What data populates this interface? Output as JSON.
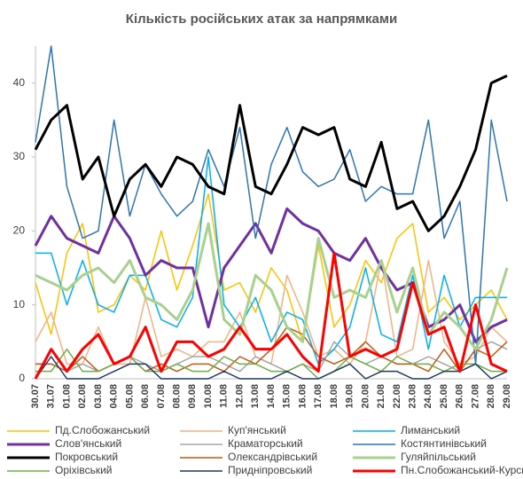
{
  "chart_data": {
    "type": "line",
    "title": "Кількість російських атак за напрямками",
    "categories": [
      "30.07",
      "31.07",
      "01.08",
      "02.08",
      "03.08",
      "04.08",
      "05.08",
      "06.08",
      "07.08",
      "08.08",
      "09.08",
      "10.08",
      "11.08",
      "12.08",
      "13.08",
      "14.08",
      "15.08",
      "16.08",
      "17.08",
      "18.08",
      "19.08",
      "20.08",
      "21.08",
      "22.08",
      "23.08",
      "24.08",
      "25.08",
      "26.08",
      "27.08",
      "28.08",
      "29.08"
    ],
    "ylim": [
      0,
      45
    ],
    "yticks": [
      0,
      10,
      20,
      30,
      40
    ],
    "legend": "bottom",
    "series": [
      {
        "name": "Пд.Слобожанський",
        "color": "#ffc000",
        "line_width": 1.5,
        "values": [
          13,
          6,
          17,
          21,
          9,
          10,
          14,
          12,
          20,
          12,
          18,
          25,
          12,
          13,
          9,
          15,
          12,
          5,
          18,
          7,
          10,
          16,
          13,
          19,
          21,
          9,
          11,
          8,
          10,
          12,
          8
        ]
      },
      {
        "name": "Куп'янський",
        "color": "#f4b183",
        "line_width": 1.5,
        "values": [
          5,
          9,
          2,
          2,
          7,
          2,
          2,
          11,
          3,
          4,
          3,
          5,
          5,
          9,
          3,
          2,
          14,
          9,
          3,
          4,
          2,
          5,
          16,
          3,
          4,
          16,
          5,
          2,
          3,
          7,
          5
        ]
      },
      {
        "name": "Лиманський",
        "color": "#00b0f0",
        "line_width": 1.5,
        "values": [
          17,
          17,
          10,
          16,
          10,
          9,
          14,
          14,
          8,
          7,
          11,
          30,
          10,
          7,
          11,
          5,
          9,
          8,
          2,
          4,
          7,
          15,
          6,
          5,
          14,
          4,
          14,
          7,
          11,
          11,
          11
        ]
      },
      {
        "name": "Слов'янський",
        "color": "#7030a0",
        "line_width": 3,
        "values": [
          18,
          22,
          19,
          18,
          17,
          22,
          19,
          14,
          16,
          15,
          15,
          7,
          15,
          18,
          21,
          17,
          23,
          21,
          20,
          17,
          16,
          19,
          15,
          12,
          13,
          7,
          8,
          10,
          5,
          7,
          8
        ]
      },
      {
        "name": "Краматорський",
        "color": "#a5a5a5",
        "line_width": 1.5,
        "values": [
          2,
          2,
          1,
          2,
          1,
          2,
          3,
          2,
          1,
          2,
          3,
          3,
          2,
          1,
          3,
          2,
          1,
          2,
          1,
          5,
          3,
          2,
          3,
          2,
          2,
          3,
          2,
          1,
          4,
          5,
          4
        ]
      },
      {
        "name": "Костянтинівський",
        "color": "#2e75b6",
        "line_width": 1.5,
        "values": [
          32,
          45,
          26,
          19,
          20,
          35,
          22,
          29,
          25,
          22,
          24,
          31,
          26,
          34,
          19,
          29,
          34,
          28,
          26,
          27,
          31,
          24,
          26,
          25,
          25,
          35,
          19,
          24,
          2,
          35,
          24
        ]
      },
      {
        "name": "Покровський",
        "color": "#000000",
        "line_width": 3,
        "values": [
          31,
          35,
          37,
          27,
          30,
          22,
          27,
          29,
          26,
          30,
          29,
          26,
          25,
          37,
          26,
          25,
          29,
          34,
          33,
          34,
          27,
          26,
          32,
          23,
          24,
          20,
          22,
          26,
          31,
          40,
          41
        ]
      },
      {
        "name": "Олександрівський",
        "color": "#c55a11",
        "line_width": 1.5,
        "values": [
          2,
          2,
          1,
          3,
          1,
          2,
          3,
          1,
          2,
          1,
          2,
          2,
          1,
          3,
          2,
          4,
          7,
          6,
          3,
          2,
          3,
          5,
          3,
          2,
          2,
          1,
          4,
          1,
          4,
          3,
          5
        ]
      },
      {
        "name": "Гуляйпільський",
        "color": "#a9d18e",
        "line_width": 3,
        "values": [
          14,
          13,
          12,
          14,
          15,
          13,
          16,
          11,
          10,
          8,
          12,
          21,
          8,
          6,
          14,
          12,
          7,
          5,
          19,
          11,
          12,
          11,
          16,
          9,
          15,
          6,
          9,
          7,
          4,
          8,
          15
        ]
      },
      {
        "name": "Оріхівський",
        "color": "#70ad47",
        "line_width": 1.5,
        "values": [
          1,
          1,
          4,
          1,
          1,
          2,
          3,
          1,
          1,
          2,
          1,
          1,
          3,
          2,
          2,
          1,
          1,
          2,
          0,
          1,
          3,
          2,
          1,
          3,
          2,
          2,
          1,
          2,
          2,
          1,
          1
        ]
      },
      {
        "name": "Придніпровський",
        "color": "#1f3864",
        "line_width": 1.5,
        "values": [
          0,
          3,
          0,
          0,
          0,
          1,
          2,
          2,
          0,
          0,
          0,
          0,
          1,
          0,
          0,
          0,
          1,
          0,
          0,
          1,
          2,
          0,
          1,
          1,
          0,
          0,
          1,
          1,
          2,
          0,
          1
        ]
      },
      {
        "name": "Пн.Слобожанський-Курський",
        "color": "#ff0000",
        "line_width": 3,
        "values": [
          0,
          4,
          1,
          4,
          6,
          2,
          3,
          7,
          1,
          5,
          5,
          3,
          4,
          7,
          4,
          4,
          6,
          3,
          1,
          17,
          3,
          4,
          3,
          4,
          13,
          6,
          7,
          1,
          10,
          2,
          1
        ]
      }
    ]
  }
}
